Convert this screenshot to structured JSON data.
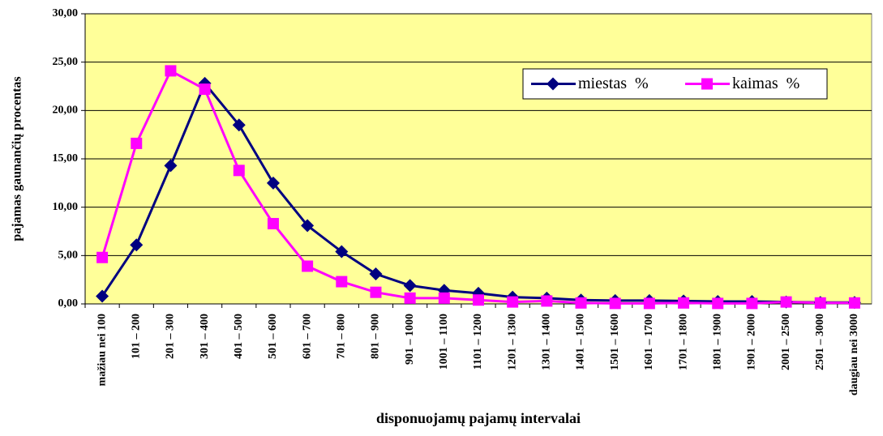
{
  "chart_data": {
    "type": "line",
    "xlabel": "disponuojamų pajamų intervalai",
    "ylabel": "pajamas gaunančių procentas",
    "categories": [
      "mažiau nei 100",
      "101 – 200",
      "201 – 300",
      "301 – 400",
      "401 – 500",
      "501 – 600",
      "601 – 700",
      "701 – 800",
      "801 – 900",
      "901 – 1000",
      "1001 – 1100",
      "1101 – 1200",
      "1201 – 1300",
      "1301 – 1400",
      "1401 – 1500",
      "1501 – 1600",
      "1601 – 1700",
      "1701 – 1800",
      "1801 – 1900",
      "1901 – 2000",
      "2001 – 2500",
      "2501 – 3000",
      "daugiau nei 3000"
    ],
    "series": [
      {
        "name": "miestas  %",
        "color": "#000080",
        "marker": "diamond",
        "values": [
          0.8,
          6.1,
          14.3,
          22.8,
          18.5,
          12.5,
          8.1,
          5.4,
          3.1,
          1.9,
          1.4,
          1.1,
          0.7,
          0.6,
          0.4,
          0.35,
          0.35,
          0.3,
          0.25,
          0.25,
          0.2,
          0.15,
          0.15
        ]
      },
      {
        "name": "kaimas  %",
        "color": "#ff00ff",
        "marker": "square",
        "values": [
          4.8,
          16.6,
          24.1,
          22.2,
          13.8,
          8.3,
          3.9,
          2.3,
          1.2,
          0.6,
          0.6,
          0.4,
          0.2,
          0.3,
          0.1,
          0.05,
          0.05,
          0.1,
          0.05,
          0.05,
          0.2,
          0.1,
          0.1
        ]
      }
    ],
    "ylim": [
      0,
      30
    ],
    "yticks": [
      {
        "value": 0,
        "label": "0,00"
      },
      {
        "value": 5,
        "label": "5,00"
      },
      {
        "value": 10,
        "label": "10,00"
      },
      {
        "value": 15,
        "label": "15,00"
      },
      {
        "value": 20,
        "label": "20,00"
      },
      {
        "value": 25,
        "label": "25,00"
      },
      {
        "value": 30,
        "label": "30,00"
      }
    ],
    "grid": true,
    "background": "#ffff99",
    "legend": "upper right"
  }
}
